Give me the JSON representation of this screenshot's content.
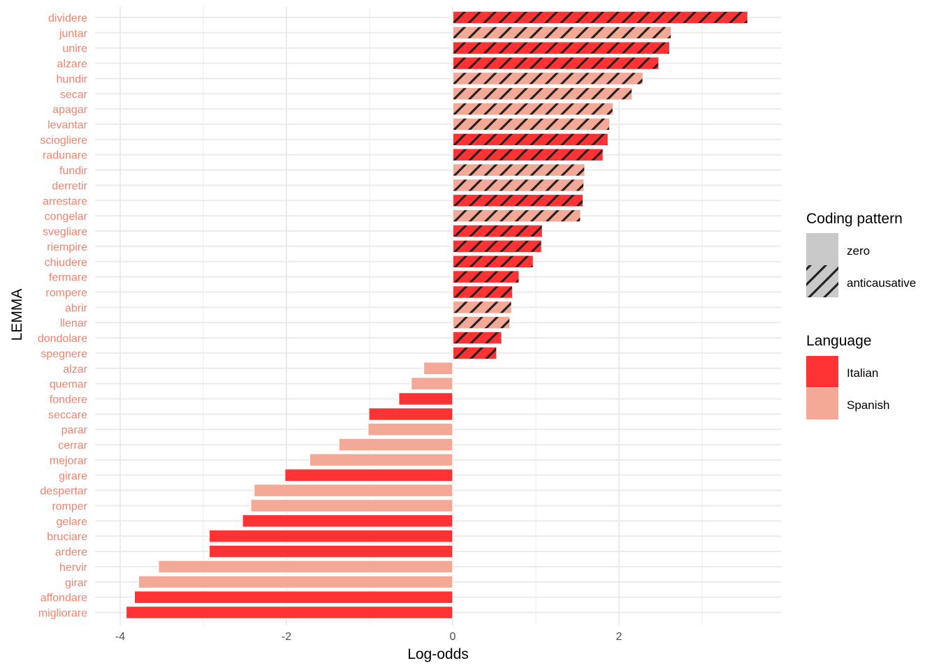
{
  "chart_data": {
    "type": "bar",
    "orientation": "horizontal",
    "xlabel": "Log-odds",
    "ylabel": "LEMMA",
    "xlim": [
      -4.2,
      3.95
    ],
    "x_ticks": [
      -4,
      -2,
      0,
      2
    ],
    "x_tick_labels": [
      "-4",
      "-2",
      "0",
      "2"
    ],
    "grid": true,
    "legend_position": "right",
    "categories": [
      "dividere",
      "juntar",
      "unire",
      "alzare",
      "hundir",
      "secar",
      "apagar",
      "levantar",
      "sciogliere",
      "radunare",
      "fundir",
      "derretir",
      "arrestare",
      "congelar",
      "svegliare",
      "riempire",
      "chiudere",
      "fermare",
      "rompere",
      "abrir",
      "llenar",
      "dondolare",
      "spegnere",
      "alzar",
      "quemar",
      "fondere",
      "seccare",
      "parar",
      "cerrar",
      "mejorar",
      "girare",
      "despertar",
      "romper",
      "gelare",
      "bruciare",
      "ardere",
      "hervir",
      "girar",
      "affondare",
      "migliorare"
    ],
    "values": [
      3.55,
      2.63,
      2.61,
      2.48,
      2.29,
      2.16,
      1.93,
      1.89,
      1.87,
      1.81,
      1.59,
      1.58,
      1.57,
      1.54,
      1.08,
      1.07,
      0.97,
      0.8,
      0.72,
      0.71,
      0.69,
      0.59,
      0.53,
      -0.35,
      -0.5,
      -0.65,
      -1.01,
      -1.02,
      -1.37,
      -1.72,
      -2.02,
      -2.39,
      -2.43,
      -2.53,
      -2.93,
      -2.93,
      -3.54,
      -3.78,
      -3.83,
      -3.93
    ],
    "language": [
      "Italian",
      "Spanish",
      "Italian",
      "Italian",
      "Spanish",
      "Spanish",
      "Spanish",
      "Spanish",
      "Italian",
      "Italian",
      "Spanish",
      "Spanish",
      "Italian",
      "Spanish",
      "Italian",
      "Italian",
      "Italian",
      "Italian",
      "Italian",
      "Spanish",
      "Spanish",
      "Italian",
      "Italian",
      "Spanish",
      "Spanish",
      "Italian",
      "Italian",
      "Spanish",
      "Spanish",
      "Spanish",
      "Italian",
      "Spanish",
      "Spanish",
      "Italian",
      "Italian",
      "Italian",
      "Spanish",
      "Spanish",
      "Italian",
      "Italian"
    ],
    "coding_pattern": [
      "anticausative",
      "anticausative",
      "anticausative",
      "anticausative",
      "anticausative",
      "anticausative",
      "anticausative",
      "anticausative",
      "anticausative",
      "anticausative",
      "anticausative",
      "anticausative",
      "anticausative",
      "anticausative",
      "anticausative",
      "anticausative",
      "anticausative",
      "anticausative",
      "anticausative",
      "anticausative",
      "anticausative",
      "anticausative",
      "anticausative",
      "zero",
      "zero",
      "zero",
      "zero",
      "zero",
      "zero",
      "zero",
      "zero",
      "zero",
      "zero",
      "zero",
      "zero",
      "zero",
      "zero",
      "zero",
      "zero",
      "zero"
    ],
    "tick_label_color": "#f2826d",
    "legends": [
      {
        "title": "Coding pattern",
        "entries": [
          {
            "label": "zero",
            "key": "zero"
          },
          {
            "label": "anticausative",
            "key": "anticausative"
          }
        ]
      },
      {
        "title": "Language",
        "entries": [
          {
            "label": "Italian",
            "key": "Italian"
          },
          {
            "label": "Spanish",
            "key": "Spanish"
          }
        ]
      }
    ],
    "colors": {
      "Italian": "#ff3333",
      "Spanish": "#f4a896",
      "pattern_key_fill": "#c9c9c9",
      "hatch": "#222222",
      "bar_outline": "#ffffff",
      "grid": "#ebebeb"
    }
  }
}
